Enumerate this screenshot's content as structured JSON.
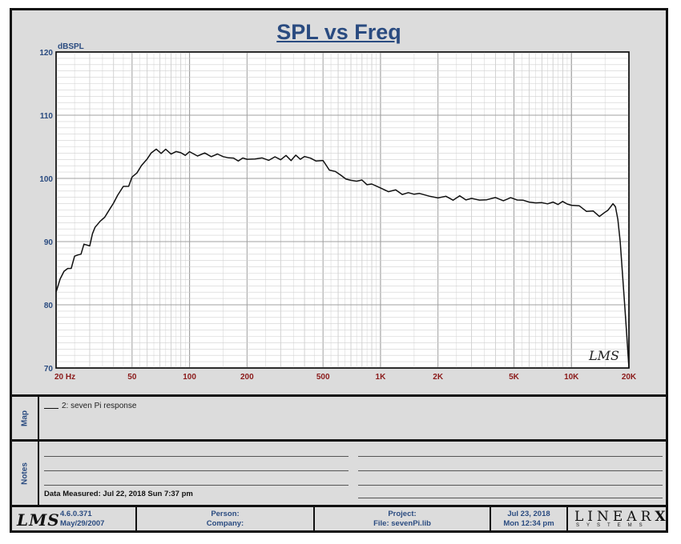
{
  "chart_data": {
    "type": "line",
    "title": "SPL vs Freq",
    "ylabel": "dBSPL",
    "xlabel": "",
    "x_scale": "log",
    "xlim": [
      20,
      20000
    ],
    "ylim": [
      70,
      120
    ],
    "y_ticks": [
      70,
      80,
      90,
      100,
      110,
      120
    ],
    "x_ticks": [
      {
        "value": 20,
        "label": "20  Hz"
      },
      {
        "value": 50,
        "label": "50"
      },
      {
        "value": 100,
        "label": "100"
      },
      {
        "value": 200,
        "label": "200"
      },
      {
        "value": 500,
        "label": "500"
      },
      {
        "value": 1000,
        "label": "1K"
      },
      {
        "value": 2000,
        "label": "2K"
      },
      {
        "value": 5000,
        "label": "5K"
      },
      {
        "value": 10000,
        "label": "10K"
      },
      {
        "value": 20000,
        "label": "20K"
      }
    ],
    "grid": true,
    "series": [
      {
        "name": "2: seven Pi response",
        "x": [
          20,
          21,
          22,
          23,
          24,
          25,
          26,
          27,
          28,
          30,
          31,
          32,
          34,
          36,
          38,
          40,
          42,
          45,
          48,
          50,
          53,
          56,
          60,
          63,
          67,
          71,
          75,
          80,
          85,
          90,
          95,
          100,
          110,
          120,
          130,
          140,
          150,
          160,
          170,
          180,
          190,
          200,
          220,
          240,
          260,
          280,
          300,
          320,
          340,
          360,
          380,
          400,
          430,
          460,
          500,
          540,
          580,
          620,
          660,
          700,
          750,
          800,
          850,
          900,
          1000,
          1100,
          1200,
          1300,
          1400,
          1500,
          1600,
          1800,
          2000,
          2200,
          2400,
          2600,
          2800,
          3000,
          3300,
          3600,
          4000,
          4400,
          4800,
          5200,
          5600,
          6000,
          6500,
          7000,
          7500,
          8000,
          8500,
          9000,
          9500,
          10000,
          11000,
          12000,
          13000,
          14000,
          15000,
          15500,
          16000,
          16500,
          17000,
          17500,
          18000,
          18500,
          19000,
          19500,
          20000
        ],
        "y": [
          82,
          84,
          85.5,
          85.5,
          86,
          87.5,
          88,
          88,
          89.5,
          89.5,
          91,
          92.5,
          93,
          94,
          95,
          96,
          97.5,
          98.5,
          99,
          100,
          101,
          102,
          103,
          104.2,
          104.4,
          104.2,
          104.4,
          104,
          104.2,
          104,
          103.8,
          104,
          103.8,
          103.8,
          103.6,
          103.8,
          103.4,
          103.4,
          103,
          103,
          103,
          103.2,
          103,
          103.2,
          103,
          103.2,
          103.2,
          103.4,
          103,
          103.6,
          103,
          103.6,
          103,
          103,
          102.6,
          101.5,
          101,
          100.5,
          100,
          99.5,
          99.8,
          99.5,
          99.2,
          99,
          98.5,
          98,
          98,
          97.7,
          97.5,
          97.7,
          97.5,
          97.2,
          97,
          97,
          96.8,
          97,
          96.8,
          96.7,
          96.6,
          96.7,
          96.8,
          96.7,
          96.7,
          96.8,
          96.4,
          96.3,
          96.2,
          96,
          96.2,
          96,
          96.1,
          96.2,
          96,
          95.8,
          95.5,
          95,
          94.6,
          94.2,
          94.5,
          95,
          95.5,
          96,
          95.5,
          93.5,
          90,
          85,
          80,
          75,
          70
        ]
      }
    ]
  },
  "watermark": "LMS",
  "map": {
    "side_label": "Map",
    "legend_label": "2: seven Pi response"
  },
  "notes": {
    "side_label": "Notes",
    "measured": "Data Measured: Jul 22, 2018  Sun  7:37 pm"
  },
  "footer": {
    "logo": "LMS",
    "version": "4.6.0.371",
    "version_date": "May/29/2007",
    "person": "Person:",
    "company": "Company:",
    "project": "Project:",
    "file": "File: sevenPi.lib",
    "date": "Jul 23, 2018",
    "time": "Mon 12:34 pm",
    "brand": "LINEAR",
    "brand_x": "X",
    "brand_sub": "SYSTEMS"
  },
  "colors": {
    "axis_y": "#2a4b80",
    "axis_x": "#8b1a1a",
    "curve": "#111111",
    "plot_bg": "#ffffff",
    "frame_bg": "#dcdcdc"
  }
}
